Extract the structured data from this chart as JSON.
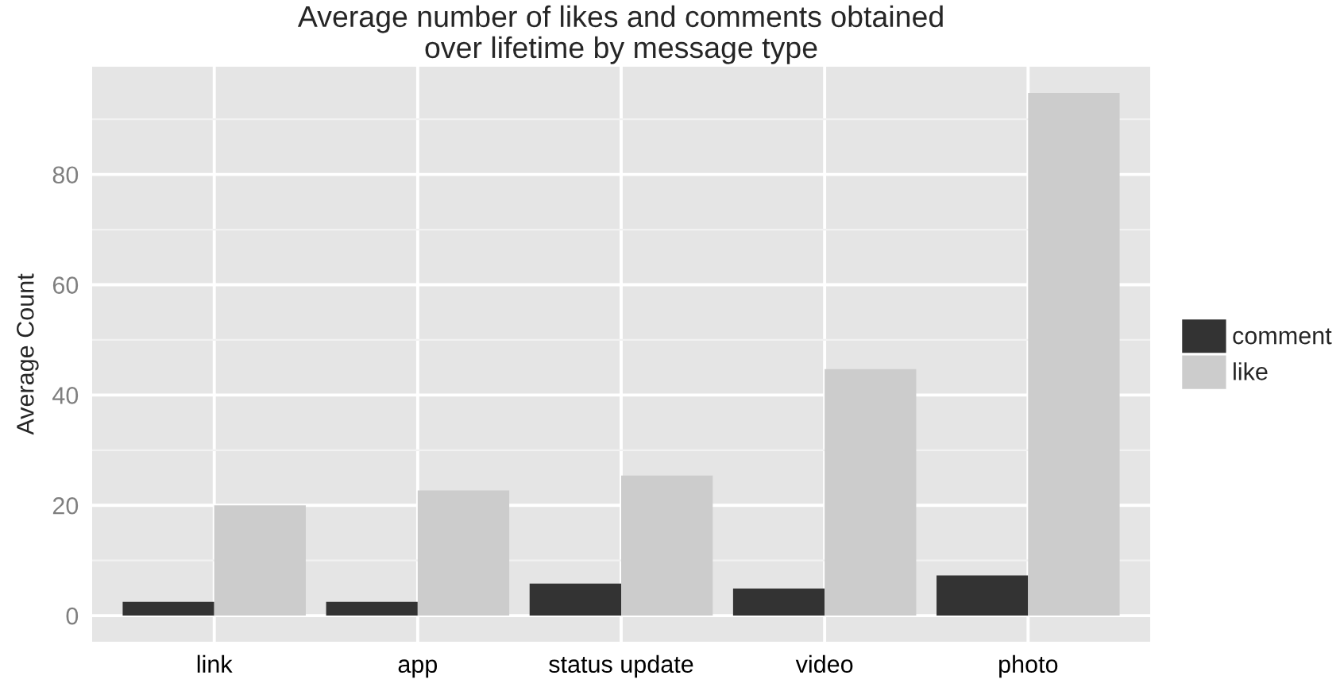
{
  "chart_data": {
    "type": "bar",
    "title": "Average number of likes and comments obtained\nover lifetime by message type",
    "ylabel": "Average Count",
    "categories": [
      "link",
      "app",
      "status update",
      "video",
      "photo"
    ],
    "series": [
      {
        "name": "comment",
        "color": "#333333",
        "values": [
          2.5,
          2.5,
          5.8,
          4.9,
          7.3
        ]
      },
      {
        "name": "like",
        "color": "#cccccc",
        "values": [
          20.0,
          22.7,
          25.4,
          44.7,
          94.8
        ]
      }
    ],
    "ylim": [
      -4.74,
      99.54
    ],
    "yticks": [
      0,
      20,
      40,
      60,
      80
    ],
    "grid": true,
    "legend": "right"
  }
}
